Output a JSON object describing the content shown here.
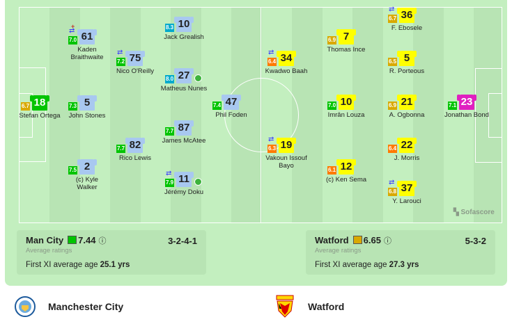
{
  "home": {
    "short_name": "Man City",
    "avg_rating": "7.44",
    "rating_color": "#00c400",
    "formation": "3-2-4-1",
    "avg_label": "Average ratings",
    "age_label": "First XI average age",
    "age": "25.1 yrs",
    "full_name": "Manchester City",
    "shirt_color": "#a8c8f0",
    "gk_color": "#00c400",
    "players": [
      {
        "num": "18",
        "name": "Stefan Ortega",
        "rating": "6.7",
        "rcolor": "#d9a900"
      },
      {
        "num": "61",
        "name": "Kaden Braithwaite",
        "rating": "7.0",
        "rcolor": "#00c400",
        "sub": true,
        "injury": true
      },
      {
        "num": "5",
        "name": "John Stones",
        "rating": "7.3",
        "rcolor": "#00c400"
      },
      {
        "num": "2",
        "name": "(c) Kyle Walker",
        "rating": "7.5",
        "rcolor": "#00c400"
      },
      {
        "num": "75",
        "name": "Nico O'Reilly",
        "rating": "7.2",
        "rcolor": "#00c400",
        "sub": true
      },
      {
        "num": "82",
        "name": "Rico Lewis",
        "rating": "7.7",
        "rcolor": "#00c400"
      },
      {
        "num": "10",
        "name": "Jack Grealish",
        "rating": "8.3",
        "rcolor": "#00aacc"
      },
      {
        "num": "27",
        "name": "Matheus Nunes",
        "rating": "8.0",
        "rcolor": "#00aacc",
        "goal": true
      },
      {
        "num": "87",
        "name": "James McAtee",
        "rating": "7.7",
        "rcolor": "#00c400"
      },
      {
        "num": "11",
        "name": "Jérémy Doku",
        "rating": "7.9",
        "rcolor": "#00c400",
        "sub": true,
        "goal": true
      },
      {
        "num": "47",
        "name": "Phil Foden",
        "rating": "7.4",
        "rcolor": "#00c400"
      }
    ]
  },
  "away": {
    "short_name": "Watford",
    "avg_rating": "6.65",
    "rating_color": "#d9a900",
    "formation": "5-3-2",
    "avg_label": "Average ratings",
    "age_label": "First XI average age",
    "age": "27.3 yrs",
    "full_name": "Watford",
    "shirt_color": "#ffff00",
    "gk_color": "#e020c0",
    "players": [
      {
        "num": "34",
        "name": "Kwadwo Baah",
        "rating": "6.4",
        "rcolor": "#ff7a00",
        "sub": true
      },
      {
        "num": "19",
        "name": "Vakoun Issouf Bayo",
        "rating": "6.3",
        "rcolor": "#ff7a00",
        "sub": true
      },
      {
        "num": "7",
        "name": "Thomas Ince",
        "rating": "6.9",
        "rcolor": "#d9a900"
      },
      {
        "num": "10",
        "name": "Imrân Louza",
        "rating": "7.0",
        "rcolor": "#00c400"
      },
      {
        "num": "12",
        "name": "(c) Ken Sema",
        "rating": "6.1",
        "rcolor": "#ff7a00"
      },
      {
        "num": "36",
        "name": "F. Ebosele",
        "rating": "6.7",
        "rcolor": "#d9a900",
        "sub": true
      },
      {
        "num": "5",
        "name": "R. Porteous",
        "rating": "6.5",
        "rcolor": "#d9a900"
      },
      {
        "num": "21",
        "name": "A. Ogbonna",
        "rating": "6.9",
        "rcolor": "#d9a900"
      },
      {
        "num": "22",
        "name": "J. Morris",
        "rating": "6.4",
        "rcolor": "#ff7a00"
      },
      {
        "num": "37",
        "name": "Y. Larouci",
        "rating": "6.8",
        "rcolor": "#d9a900",
        "sub": true
      },
      {
        "num": "23",
        "name": "Jonathan Bond",
        "rating": "7.1",
        "rcolor": "#00c400"
      }
    ]
  },
  "brand": "Sofascore"
}
